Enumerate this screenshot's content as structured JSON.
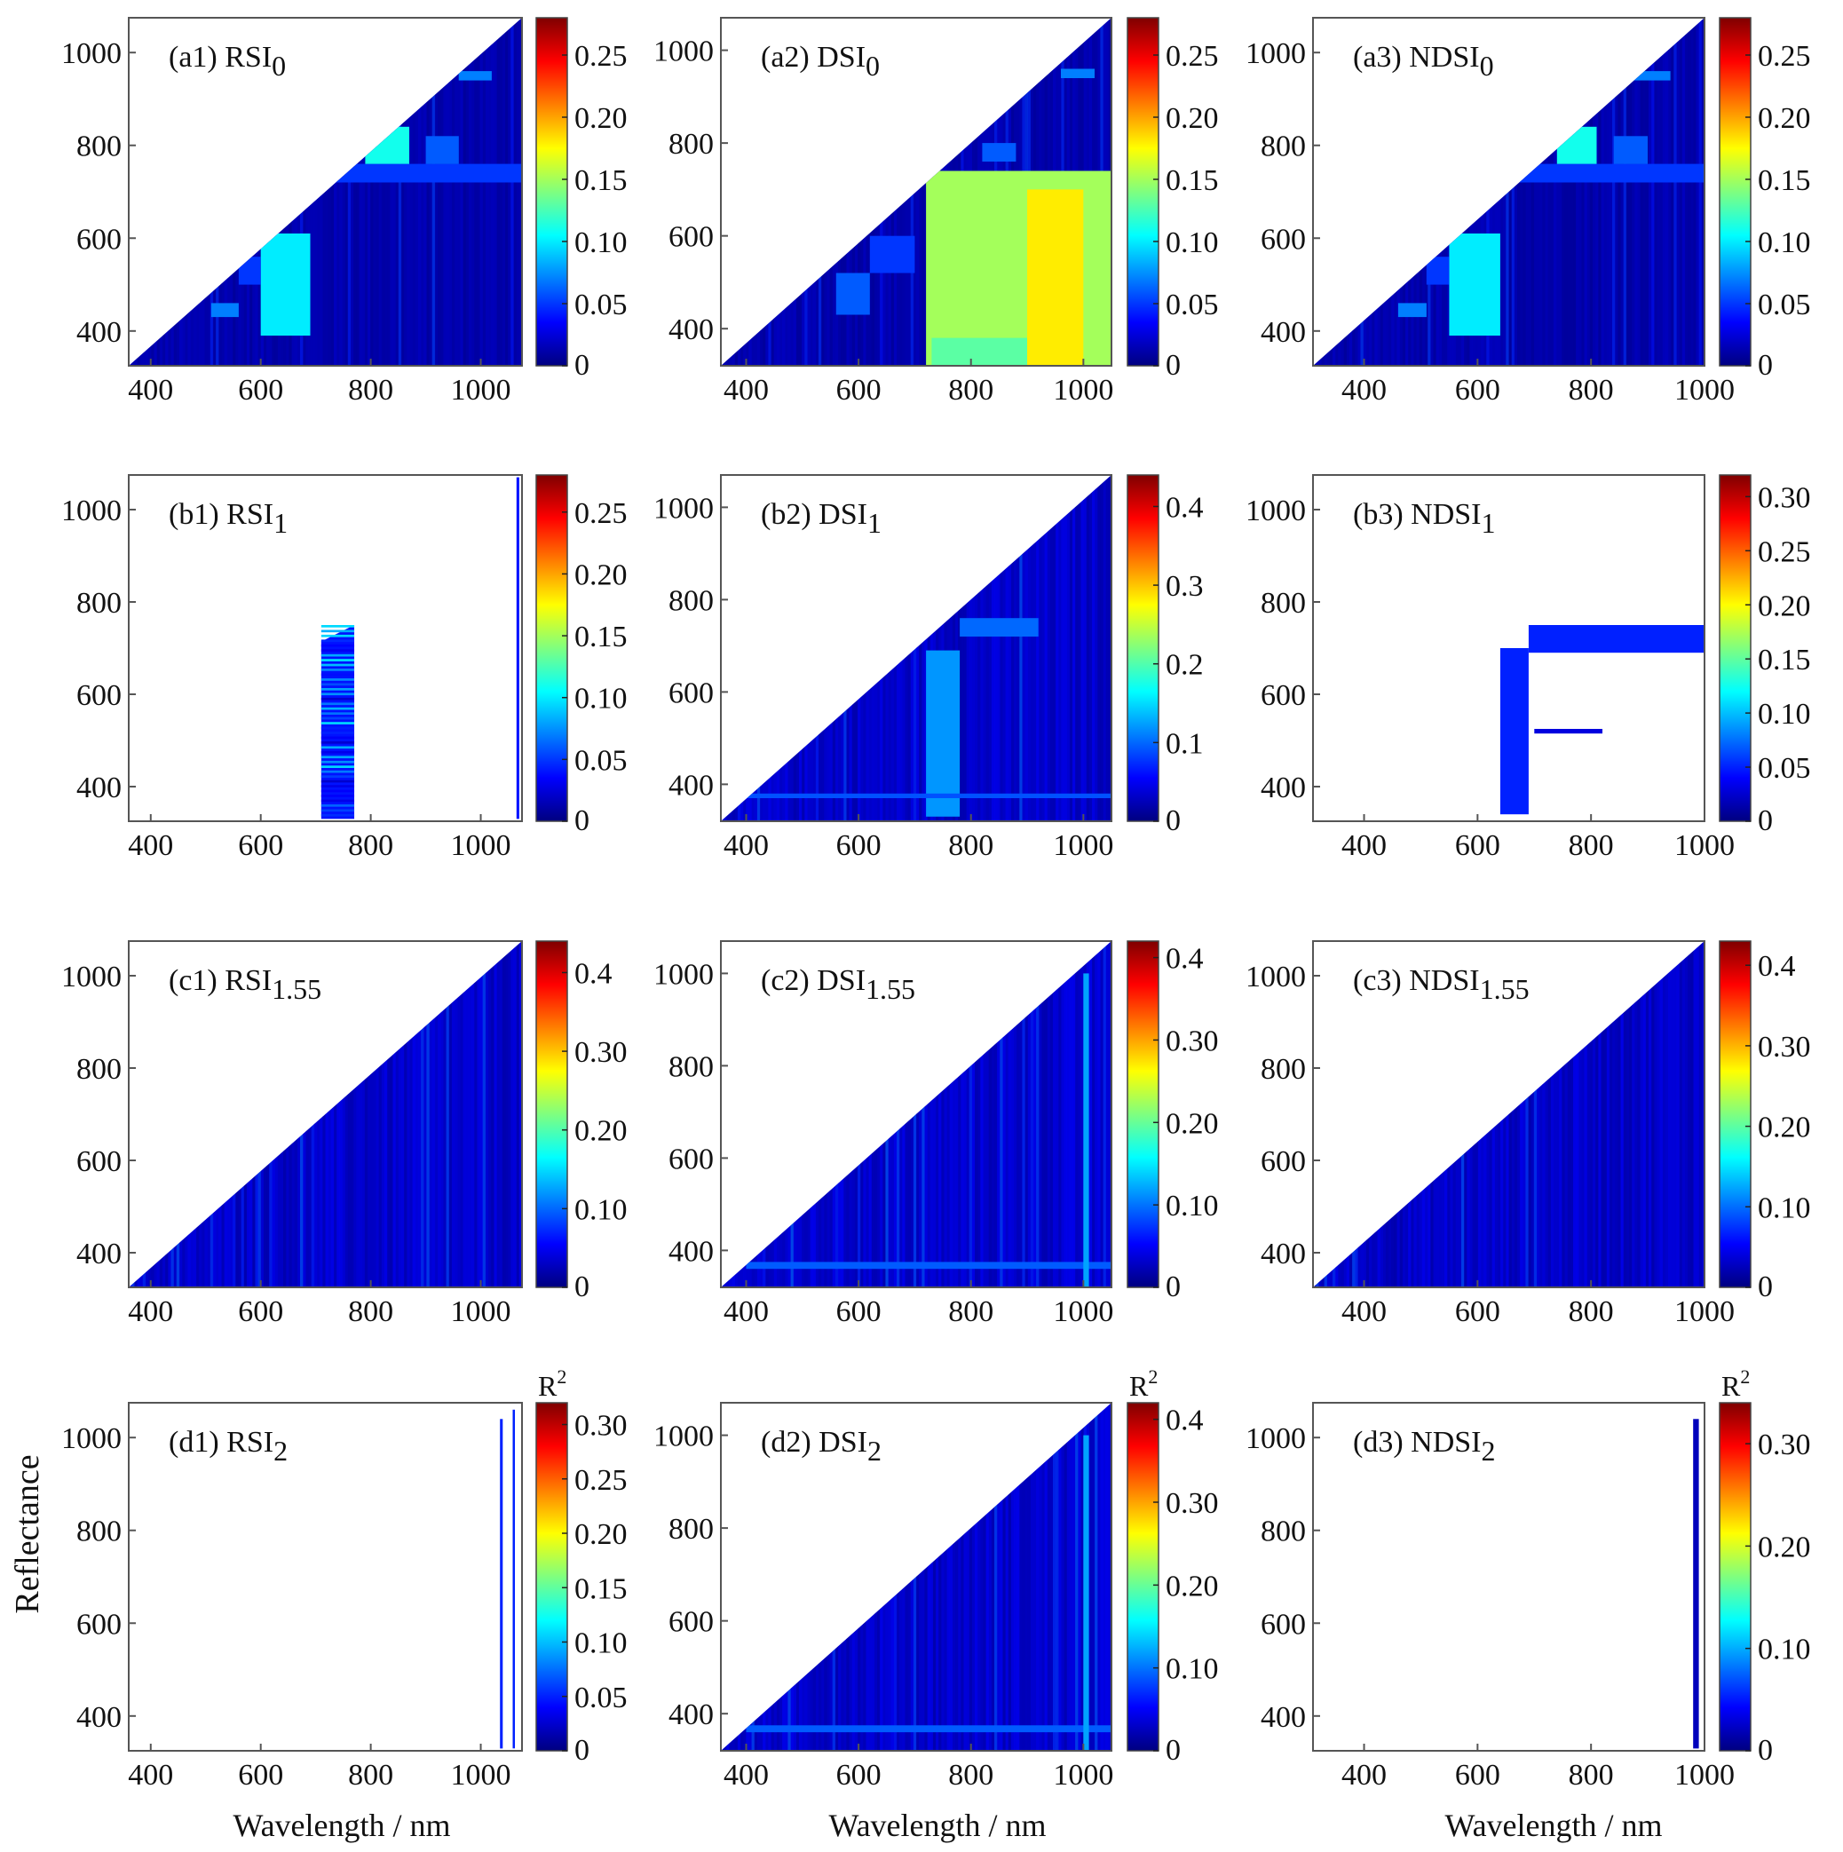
{
  "figure": {
    "ylabel": "Reflectance",
    "xlabel": "Wavelength / nm",
    "colorbar_label_base": "R",
    "colorbar_label_sup": "2"
  },
  "colormap": [
    "#00007f",
    "#0000ff",
    "#007fff",
    "#00ffff",
    "#7fff7f",
    "#ffff00",
    "#ff7f00",
    "#ff0000",
    "#7f0000"
  ],
  "chart_data": [
    {
      "id": "a1",
      "type": "heatmap",
      "title": "(a1) RSI",
      "subscript": "0",
      "x_ticks": [
        "400",
        "600",
        "800",
        "1000"
      ],
      "x_tick_values": [
        400,
        600,
        800,
        1000
      ],
      "xlim": [
        360,
        1075
      ],
      "y_ticks": [
        "400",
        "600",
        "800",
        "1000"
      ],
      "y_tick_values": [
        400,
        600,
        800,
        1000
      ],
      "ylim": [
        325,
        1075
      ],
      "colorbar_ticks": [
        "0",
        "0.05",
        "0.10",
        "0.15",
        "0.20",
        "0.25"
      ],
      "colorbar_tick_values": [
        0,
        0.05,
        0.1,
        0.15,
        0.2,
        0.25
      ],
      "colorbar_range": [
        0,
        0.28
      ],
      "pattern": "triangle",
      "background_value": 0.012,
      "regions": [
        {
          "x": [
            720,
            1075
          ],
          "y": [
            720,
            760
          ],
          "v": 0.05
        },
        {
          "x": [
            790,
            870
          ],
          "y": [
            760,
            840
          ],
          "v": 0.11
        },
        {
          "x": [
            900,
            960
          ],
          "y": [
            760,
            820
          ],
          "v": 0.06
        },
        {
          "x": [
            960,
            1020
          ],
          "y": [
            940,
            960
          ],
          "v": 0.07
        },
        {
          "x": [
            600,
            690
          ],
          "y": [
            390,
            610
          ],
          "v": 0.1
        },
        {
          "x": [
            590,
            620
          ],
          "y": [
            600,
            620
          ],
          "v": 0.08
        },
        {
          "x": [
            510,
            560
          ],
          "y": [
            430,
            460
          ],
          "v": 0.07
        },
        {
          "x": [
            560,
            600
          ],
          "y": [
            500,
            560
          ],
          "v": 0.05
        }
      ]
    },
    {
      "id": "a2",
      "type": "heatmap",
      "title": "(a2) DSI",
      "subscript": "0",
      "x_ticks": [
        "400",
        "600",
        "800",
        "1000"
      ],
      "x_tick_values": [
        400,
        600,
        800,
        1000
      ],
      "xlim": [
        355,
        1050
      ],
      "y_ticks": [
        "400",
        "600",
        "800",
        "1000"
      ],
      "y_tick_values": [
        400,
        600,
        800,
        1000
      ],
      "ylim": [
        320,
        1070
      ],
      "colorbar_ticks": [
        "0",
        "0.05",
        "0.10",
        "0.15",
        "0.20",
        "0.25"
      ],
      "colorbar_tick_values": [
        0,
        0.05,
        0.1,
        0.15,
        0.2,
        0.25
      ],
      "colorbar_range": [
        0,
        0.28
      ],
      "pattern": "triangle",
      "background_value": 0.012,
      "regions": [
        {
          "x": [
            720,
            1050
          ],
          "y": [
            320,
            740
          ],
          "v": 0.15
        },
        {
          "x": [
            900,
            1000
          ],
          "y": [
            320,
            700
          ],
          "v": 0.18
        },
        {
          "x": [
            730,
            900
          ],
          "y": [
            320,
            380
          ],
          "v": 0.13
        },
        {
          "x": [
            620,
            700
          ],
          "y": [
            520,
            600
          ],
          "v": 0.05
        },
        {
          "x": [
            560,
            620
          ],
          "y": [
            430,
            520
          ],
          "v": 0.06
        },
        {
          "x": [
            820,
            880
          ],
          "y": [
            760,
            800
          ],
          "v": 0.06
        },
        {
          "x": [
            960,
            1020
          ],
          "y": [
            940,
            960
          ],
          "v": 0.07
        }
      ]
    },
    {
      "id": "a3",
      "type": "heatmap",
      "title": "(a3) NDSI",
      "subscript": "0",
      "x_ticks": [
        "400",
        "600",
        "800",
        "1000"
      ],
      "x_tick_values": [
        400,
        600,
        800,
        1000
      ],
      "xlim": [
        310,
        1000
      ],
      "y_ticks": [
        "400",
        "600",
        "800",
        "1000"
      ],
      "y_tick_values": [
        400,
        600,
        800,
        1000
      ],
      "ylim": [
        325,
        1075
      ],
      "colorbar_ticks": [
        "0",
        "0.05",
        "0.10",
        "0.15",
        "0.20",
        "0.25"
      ],
      "colorbar_tick_values": [
        0,
        0.05,
        0.1,
        0.15,
        0.2,
        0.25
      ],
      "colorbar_range": [
        0,
        0.28
      ],
      "pattern": "triangle",
      "background_value": 0.012,
      "regions": [
        {
          "x": [
            660,
            1000
          ],
          "y": [
            720,
            760
          ],
          "v": 0.05
        },
        {
          "x": [
            740,
            810
          ],
          "y": [
            760,
            840
          ],
          "v": 0.11
        },
        {
          "x": [
            840,
            900
          ],
          "y": [
            760,
            820
          ],
          "v": 0.06
        },
        {
          "x": [
            870,
            940
          ],
          "y": [
            940,
            960
          ],
          "v": 0.07
        },
        {
          "x": [
            550,
            640
          ],
          "y": [
            390,
            610
          ],
          "v": 0.1
        },
        {
          "x": [
            460,
            510
          ],
          "y": [
            430,
            460
          ],
          "v": 0.07
        },
        {
          "x": [
            510,
            550
          ],
          "y": [
            500,
            560
          ],
          "v": 0.05
        }
      ]
    },
    {
      "id": "b1",
      "type": "heatmap",
      "title": "(b1) RSI",
      "subscript": "1",
      "x_ticks": [
        "400",
        "600",
        "800",
        "1000"
      ],
      "x_tick_values": [
        400,
        600,
        800,
        1000
      ],
      "xlim": [
        360,
        1075
      ],
      "y_ticks": [
        "400",
        "600",
        "800",
        "1000"
      ],
      "y_tick_values": [
        400,
        600,
        800,
        1000
      ],
      "ylim": [
        325,
        1075
      ],
      "colorbar_ticks": [
        "0",
        "0.05",
        "0.10",
        "0.15",
        "0.20",
        "0.25"
      ],
      "colorbar_tick_values": [
        0,
        0.05,
        0.1,
        0.15,
        0.2,
        0.25
      ],
      "colorbar_range": [
        0,
        0.28
      ],
      "pattern": "blank",
      "regions": [
        {
          "x": [
            710,
            770
          ],
          "y": [
            330,
            750
          ],
          "v": 0.04,
          "shape": "slant"
        },
        {
          "x": [
            1065,
            1070
          ],
          "y": [
            330,
            1070
          ],
          "v": 0.04
        }
      ]
    },
    {
      "id": "b2",
      "type": "heatmap",
      "title": "(b2) DSI",
      "subscript": "1",
      "x_ticks": [
        "400",
        "600",
        "800",
        "1000"
      ],
      "x_tick_values": [
        400,
        600,
        800,
        1000
      ],
      "xlim": [
        355,
        1050
      ],
      "y_ticks": [
        "400",
        "600",
        "800",
        "1000"
      ],
      "y_tick_values": [
        400,
        600,
        800,
        1000
      ],
      "ylim": [
        320,
        1070
      ],
      "colorbar_ticks": [
        "0",
        "0.1",
        "0.2",
        "0.3",
        "0.4"
      ],
      "colorbar_tick_values": [
        0,
        0.1,
        0.2,
        0.3,
        0.4
      ],
      "colorbar_range": [
        0,
        0.44
      ],
      "pattern": "triangle",
      "background_value": 0.03,
      "regions": [
        {
          "x": [
            720,
            780
          ],
          "y": [
            330,
            690
          ],
          "v": 0.12
        },
        {
          "x": [
            780,
            920
          ],
          "y": [
            720,
            760
          ],
          "v": 0.1
        },
        {
          "x": [
            400,
            1050
          ],
          "y": [
            370,
            380
          ],
          "v": 0.09
        }
      ]
    },
    {
      "id": "b3",
      "type": "heatmap",
      "title": "(b3) NDSI",
      "subscript": "1",
      "x_ticks": [
        "400",
        "600",
        "800",
        "1000"
      ],
      "x_tick_values": [
        400,
        600,
        800,
        1000
      ],
      "xlim": [
        310,
        1000
      ],
      "y_ticks": [
        "400",
        "600",
        "800",
        "1000"
      ],
      "y_tick_values": [
        400,
        600,
        800,
        1000
      ],
      "ylim": [
        325,
        1075
      ],
      "colorbar_ticks": [
        "0",
        "0.05",
        "0.10",
        "0.15",
        "0.20",
        "0.25",
        "0.30"
      ],
      "colorbar_tick_values": [
        0,
        0.05,
        0.1,
        0.15,
        0.2,
        0.25,
        0.3
      ],
      "colorbar_range": [
        0,
        0.32
      ],
      "pattern": "blank",
      "regions": [
        {
          "x": [
            640,
            690
          ],
          "y": [
            340,
            700
          ],
          "v": 0.05
        },
        {
          "x": [
            690,
            1000
          ],
          "y": [
            690,
            750
          ],
          "v": 0.05
        },
        {
          "x": [
            700,
            820
          ],
          "y": [
            515,
            525
          ],
          "v": 0.03
        }
      ]
    },
    {
      "id": "c1",
      "type": "heatmap",
      "title": "(c1) RSI",
      "subscript": "1.55",
      "x_ticks": [
        "400",
        "600",
        "800",
        "1000"
      ],
      "x_tick_values": [
        400,
        600,
        800,
        1000
      ],
      "xlim": [
        360,
        1075
      ],
      "y_ticks": [
        "400",
        "600",
        "800",
        "1000"
      ],
      "y_tick_values": [
        400,
        600,
        800,
        1000
      ],
      "ylim": [
        325,
        1075
      ],
      "colorbar_ticks": [
        "0",
        "0.10",
        "0.20",
        "0.30",
        "0.4"
      ],
      "colorbar_tick_values": [
        0,
        0.1,
        0.2,
        0.3,
        0.4
      ],
      "colorbar_range": [
        0,
        0.44
      ],
      "pattern": "triangle",
      "background_value": 0.03,
      "regions": []
    },
    {
      "id": "c2",
      "type": "heatmap",
      "title": "(c2) DSI",
      "subscript": "1.55",
      "x_ticks": [
        "400",
        "600",
        "800",
        "1000"
      ],
      "x_tick_values": [
        400,
        600,
        800,
        1000
      ],
      "xlim": [
        355,
        1050
      ],
      "y_ticks": [
        "400",
        "600",
        "800",
        "1000"
      ],
      "y_tick_values": [
        400,
        600,
        800,
        1000
      ],
      "ylim": [
        320,
        1070
      ],
      "colorbar_ticks": [
        "0",
        "0.10",
        "0.20",
        "0.30",
        "0.4"
      ],
      "colorbar_tick_values": [
        0,
        0.1,
        0.2,
        0.3,
        0.4
      ],
      "colorbar_range": [
        0,
        0.42
      ],
      "pattern": "triangle",
      "background_value": 0.03,
      "regions": [
        {
          "x": [
            400,
            1050
          ],
          "y": [
            360,
            375
          ],
          "v": 0.09
        },
        {
          "x": [
            1000,
            1010
          ],
          "y": [
            320,
            1000
          ],
          "v": 0.12
        }
      ]
    },
    {
      "id": "c3",
      "type": "heatmap",
      "title": "(c3) NDSI",
      "subscript": "1.55",
      "x_ticks": [
        "400",
        "600",
        "800",
        "1000"
      ],
      "x_tick_values": [
        400,
        600,
        800,
        1000
      ],
      "xlim": [
        310,
        1000
      ],
      "y_ticks": [
        "400",
        "600",
        "800",
        "1000"
      ],
      "y_tick_values": [
        400,
        600,
        800,
        1000
      ],
      "ylim": [
        325,
        1075
      ],
      "colorbar_ticks": [
        "0",
        "0.10",
        "0.20",
        "0.30",
        "0.4"
      ],
      "colorbar_tick_values": [
        0,
        0.1,
        0.2,
        0.3,
        0.4
      ],
      "colorbar_range": [
        0,
        0.43
      ],
      "pattern": "triangle",
      "background_value": 0.03,
      "regions": []
    },
    {
      "id": "d1",
      "type": "heatmap",
      "title": "(d1) RSI",
      "subscript": "2",
      "x_ticks": [
        "400",
        "600",
        "800",
        "1000"
      ],
      "x_tick_values": [
        400,
        600,
        800,
        1000
      ],
      "xlim": [
        360,
        1075
      ],
      "y_ticks": [
        "400",
        "600",
        "800",
        "1000"
      ],
      "y_tick_values": [
        400,
        600,
        800,
        1000
      ],
      "ylim": [
        325,
        1075
      ],
      "colorbar_ticks": [
        "0",
        "0.05",
        "0.10",
        "0.15",
        "0.20",
        "0.25",
        "0.30"
      ],
      "colorbar_tick_values": [
        0,
        0.05,
        0.1,
        0.15,
        0.2,
        0.25,
        0.3
      ],
      "colorbar_range": [
        0,
        0.32
      ],
      "pattern": "blank",
      "regions": [
        {
          "x": [
            1035,
            1040
          ],
          "y": [
            330,
            1040
          ],
          "v": 0.05
        },
        {
          "x": [
            1058,
            1062
          ],
          "y": [
            330,
            1060
          ],
          "v": 0.05
        }
      ]
    },
    {
      "id": "d2",
      "type": "heatmap",
      "title": "(d2) DSI",
      "subscript": "2",
      "x_ticks": [
        "400",
        "600",
        "800",
        "1000"
      ],
      "x_tick_values": [
        400,
        600,
        800,
        1000
      ],
      "xlim": [
        355,
        1050
      ],
      "y_ticks": [
        "400",
        "600",
        "800",
        "1000"
      ],
      "y_tick_values": [
        400,
        600,
        800,
        1000
      ],
      "ylim": [
        320,
        1070
      ],
      "colorbar_ticks": [
        "0",
        "0.10",
        "0.20",
        "0.30",
        "0.4"
      ],
      "colorbar_tick_values": [
        0,
        0.1,
        0.2,
        0.3,
        0.4
      ],
      "colorbar_range": [
        0,
        0.42
      ],
      "pattern": "triangle",
      "background_value": 0.03,
      "regions": [
        {
          "x": [
            400,
            1050
          ],
          "y": [
            360,
            375
          ],
          "v": 0.09
        },
        {
          "x": [
            1000,
            1010
          ],
          "y": [
            320,
            1000
          ],
          "v": 0.12
        }
      ]
    },
    {
      "id": "d3",
      "type": "heatmap",
      "title": "(d3) NDSI",
      "subscript": "2",
      "x_ticks": [
        "400",
        "600",
        "800",
        "1000"
      ],
      "x_tick_values": [
        400,
        600,
        800,
        1000
      ],
      "xlim": [
        310,
        1000
      ],
      "y_ticks": [
        "400",
        "600",
        "800",
        "1000"
      ],
      "y_tick_values": [
        400,
        600,
        800,
        1000
      ],
      "ylim": [
        325,
        1075
      ],
      "colorbar_ticks": [
        "0",
        "0.10",
        "0.20",
        "0.30"
      ],
      "colorbar_tick_values": [
        0,
        0.1,
        0.2,
        0.3
      ],
      "colorbar_range": [
        0,
        0.34
      ],
      "pattern": "blank",
      "regions": [
        {
          "x": [
            980,
            990
          ],
          "y": [
            330,
            1040
          ],
          "v": 0.02
        }
      ]
    }
  ]
}
